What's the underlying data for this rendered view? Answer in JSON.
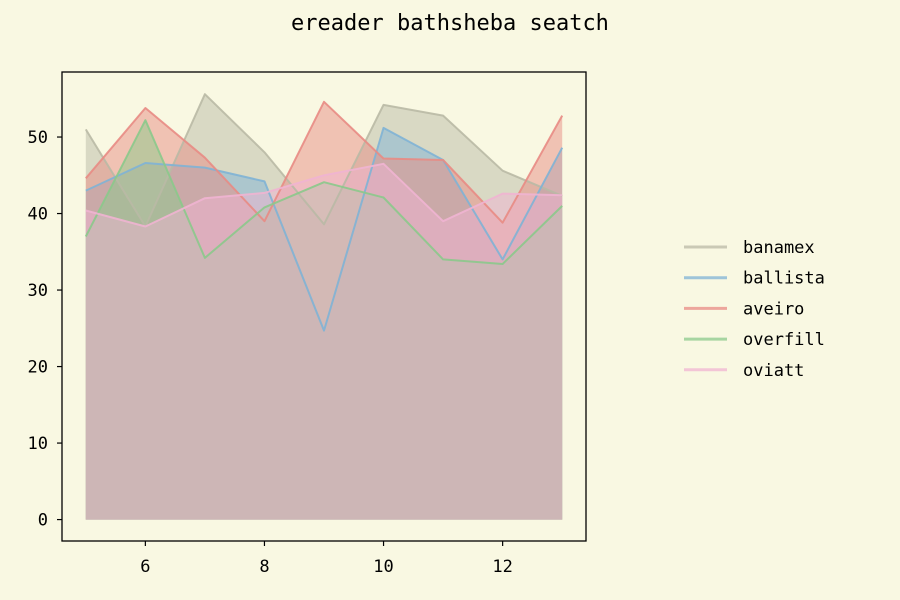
{
  "chart_data": {
    "type": "area",
    "title": "ereader bathsheba seatch",
    "xlabel": "",
    "ylabel": "",
    "x": [
      5,
      6,
      7,
      8,
      9,
      10,
      11,
      12,
      13
    ],
    "xlim": [
      4.6,
      13.4
    ],
    "ylim": [
      -2.8,
      58.5
    ],
    "xticks": [
      6,
      8,
      10,
      12
    ],
    "yticks": [
      0,
      10,
      20,
      30,
      40,
      50
    ],
    "stacked": false,
    "grid": false,
    "legend_position": "right",
    "series": [
      {
        "name": "banamex",
        "color": "#b9b9a5",
        "values": [
          51.0,
          38.3,
          55.6,
          48.0,
          38.6,
          54.2,
          52.8,
          45.6,
          42.3
        ]
      },
      {
        "name": "ballista",
        "color": "#7fb3d5",
        "values": [
          43.0,
          46.6,
          46.0,
          44.2,
          24.7,
          51.2,
          47.0,
          34.0,
          48.6
        ]
      },
      {
        "name": "aveiro",
        "color": "#e88b84",
        "values": [
          44.6,
          53.8,
          47.3,
          39.0,
          54.6,
          47.2,
          47.0,
          38.8,
          52.8
        ]
      },
      {
        "name": "overfill",
        "color": "#8bc98b",
        "values": [
          37.0,
          52.2,
          34.2,
          40.8,
          44.1,
          42.1,
          34.0,
          33.4,
          41.0
        ]
      },
      {
        "name": "oviatt",
        "color": "#f0b4d2",
        "values": [
          40.4,
          38.3,
          42.0,
          42.7,
          45.0,
          46.5,
          39.0,
          42.6,
          42.4
        ]
      }
    ]
  }
}
